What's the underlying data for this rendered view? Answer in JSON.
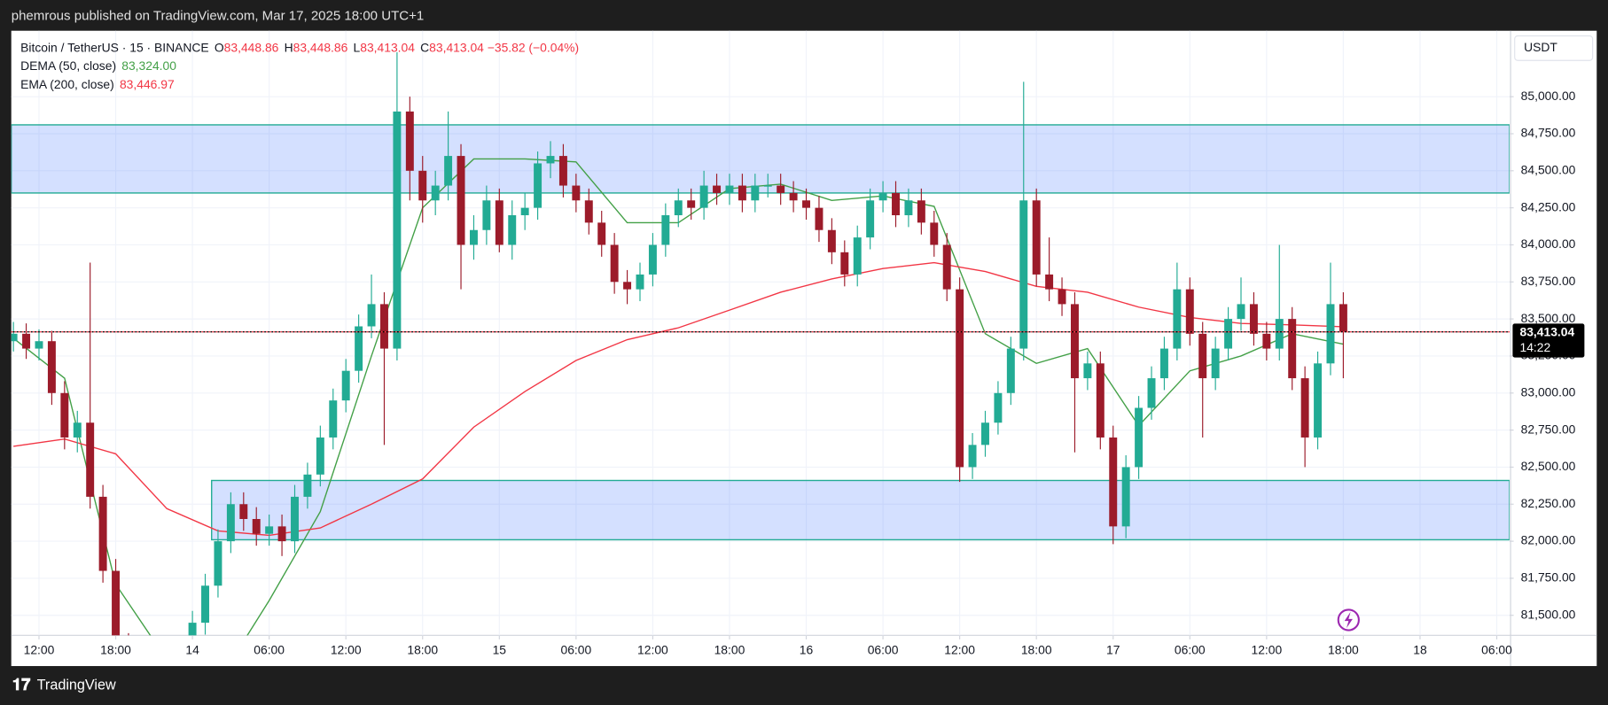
{
  "header": {
    "publisher": "phemrous published on TradingView.com, Mar 17, 2025 18:00 UTC+1"
  },
  "footer": {
    "brand": "TradingView"
  },
  "chart_data": {
    "type": "candlestick",
    "symbol": "Bitcoin / TetherUS · 15 · BINANCE",
    "ohlc": [
      {
        "key": "O",
        "value": "83,448.86"
      },
      {
        "key": "H",
        "value": "83,448.86"
      },
      {
        "key": "L",
        "value": "83,413.04"
      },
      {
        "key": "C",
        "value": "83,413.04"
      }
    ],
    "change": "−35.82 (−0.04%)",
    "y_unit": "USDT",
    "xlim": [
      "2025-03-13T09:50",
      "2025-03-18T07:00"
    ],
    "ylim": [
      81365,
      85445
    ],
    "grid": true,
    "xticks": [
      {
        "value": "2025-03-13T12:00",
        "label": "12:00"
      },
      {
        "value": "2025-03-13T18:00",
        "label": "18:00"
      },
      {
        "value": "2025-03-14T00:00",
        "label": "14"
      },
      {
        "value": "2025-03-14T06:00",
        "label": "06:00"
      },
      {
        "value": "2025-03-14T12:00",
        "label": "12:00"
      },
      {
        "value": "2025-03-14T18:00",
        "label": "18:00"
      },
      {
        "value": "2025-03-15T00:00",
        "label": "15"
      },
      {
        "value": "2025-03-15T06:00",
        "label": "06:00"
      },
      {
        "value": "2025-03-15T12:00",
        "label": "12:00"
      },
      {
        "value": "2025-03-15T18:00",
        "label": "18:00"
      },
      {
        "value": "2025-03-16T00:00",
        "label": "16"
      },
      {
        "value": "2025-03-16T06:00",
        "label": "06:00"
      },
      {
        "value": "2025-03-16T12:00",
        "label": "12:00"
      },
      {
        "value": "2025-03-16T18:00",
        "label": "18:00"
      },
      {
        "value": "2025-03-17T00:00",
        "label": "17"
      },
      {
        "value": "2025-03-17T06:00",
        "label": "06:00"
      },
      {
        "value": "2025-03-17T12:00",
        "label": "12:00"
      },
      {
        "value": "2025-03-17T18:00",
        "label": "18:00"
      },
      {
        "value": "2025-03-18T00:00",
        "label": "18"
      },
      {
        "value": "2025-03-18T06:00",
        "label": "06:00"
      }
    ],
    "yticks": [
      {
        "value": 81500,
        "label": "81,500.00"
      },
      {
        "value": 81750,
        "label": "81,750.00"
      },
      {
        "value": 82000,
        "label": "82,000.00"
      },
      {
        "value": 82250,
        "label": "82,250.00"
      },
      {
        "value": 82500,
        "label": "82,500.00"
      },
      {
        "value": 82750,
        "label": "82,750.00"
      },
      {
        "value": 83000,
        "label": "83,000.00"
      },
      {
        "value": 83250,
        "label": "83,250.00"
      },
      {
        "value": 83500,
        "label": "83,500.00"
      },
      {
        "value": 83750,
        "label": "83,750.00"
      },
      {
        "value": 84000,
        "label": "84,000.00"
      },
      {
        "value": 84250,
        "label": "84,250.00"
      },
      {
        "value": 84500,
        "label": "84,500.00"
      },
      {
        "value": 84750,
        "label": "84,750.00"
      },
      {
        "value": 85000,
        "label": "85,000.00"
      }
    ],
    "zones": [
      {
        "top": 84810,
        "bottom": 84350
      },
      {
        "from": "2025-03-14T01:30",
        "top": 82410,
        "bottom": 82010
      }
    ],
    "zone_fill": "rgba(41,98,255,0.2)",
    "zone_border": "#22ab94",
    "last_price": {
      "value": 83413.04,
      "label": "83,413.04",
      "countdown": "14:22",
      "color": "#f23645"
    },
    "candles": {
      "up_color": "#22ab94",
      "down_color": "#9c1b2a",
      "x": [
        "2025-03-13T10:00",
        "2025-03-13T11:00",
        "2025-03-13T12:00",
        "2025-03-13T13:00",
        "2025-03-13T14:00",
        "2025-03-13T15:00",
        "2025-03-13T16:00",
        "2025-03-13T17:00",
        "2025-03-13T18:00",
        "2025-03-13T19:00",
        "2025-03-13T20:00",
        "2025-03-13T21:00",
        "2025-03-13T22:00",
        "2025-03-13T23:00",
        "2025-03-14T00:00",
        "2025-03-14T01:00",
        "2025-03-14T02:00",
        "2025-03-14T03:00",
        "2025-03-14T04:00",
        "2025-03-14T05:00",
        "2025-03-14T06:00",
        "2025-03-14T07:00",
        "2025-03-14T08:00",
        "2025-03-14T09:00",
        "2025-03-14T10:00",
        "2025-03-14T11:00",
        "2025-03-14T12:00",
        "2025-03-14T13:00",
        "2025-03-14T14:00",
        "2025-03-14T15:00",
        "2025-03-14T16:00",
        "2025-03-14T17:00",
        "2025-03-14T18:00",
        "2025-03-14T19:00",
        "2025-03-14T20:00",
        "2025-03-14T21:00",
        "2025-03-14T22:00",
        "2025-03-14T23:00",
        "2025-03-15T00:00",
        "2025-03-15T01:00",
        "2025-03-15T02:00",
        "2025-03-15T03:00",
        "2025-03-15T04:00",
        "2025-03-15T05:00",
        "2025-03-15T06:00",
        "2025-03-15T07:00",
        "2025-03-15T08:00",
        "2025-03-15T09:00",
        "2025-03-15T10:00",
        "2025-03-15T11:00",
        "2025-03-15T12:00",
        "2025-03-15T13:00",
        "2025-03-15T14:00",
        "2025-03-15T15:00",
        "2025-03-15T16:00",
        "2025-03-15T17:00",
        "2025-03-15T18:00",
        "2025-03-15T19:00",
        "2025-03-15T20:00",
        "2025-03-15T21:00",
        "2025-03-15T22:00",
        "2025-03-15T23:00",
        "2025-03-16T00:00",
        "2025-03-16T01:00",
        "2025-03-16T02:00",
        "2025-03-16T03:00",
        "2025-03-16T04:00",
        "2025-03-16T05:00",
        "2025-03-16T06:00",
        "2025-03-16T07:00",
        "2025-03-16T08:00",
        "2025-03-16T09:00",
        "2025-03-16T10:00",
        "2025-03-16T11:00",
        "2025-03-16T12:00",
        "2025-03-16T13:00",
        "2025-03-16T14:00",
        "2025-03-16T15:00",
        "2025-03-16T16:00",
        "2025-03-16T17:00",
        "2025-03-16T18:00",
        "2025-03-16T19:00",
        "2025-03-16T20:00",
        "2025-03-16T21:00",
        "2025-03-16T22:00",
        "2025-03-16T23:00",
        "2025-03-17T00:00",
        "2025-03-17T01:00",
        "2025-03-17T02:00",
        "2025-03-17T03:00",
        "2025-03-17T04:00",
        "2025-03-17T05:00",
        "2025-03-17T06:00",
        "2025-03-17T07:00",
        "2025-03-17T08:00",
        "2025-03-17T09:00",
        "2025-03-17T10:00",
        "2025-03-17T11:00",
        "2025-03-17T12:00",
        "2025-03-17T13:00",
        "2025-03-17T14:00",
        "2025-03-17T15:00",
        "2025-03-17T16:00",
        "2025-03-17T17:00",
        "2025-03-17T18:00"
      ],
      "open": [
        83350,
        83400,
        83300,
        83350,
        83000,
        82700,
        82800,
        82300,
        81800,
        81300,
        81000,
        80900,
        81000,
        81100,
        81200,
        81450,
        81700,
        82000,
        82250,
        82150,
        82050,
        82100,
        82000,
        82300,
        82450,
        82700,
        82950,
        83150,
        83450,
        83600,
        83300,
        84900,
        84500,
        84300,
        84400,
        84600,
        84000,
        84100,
        84300,
        84000,
        84200,
        84250,
        84550,
        84600,
        84400,
        84300,
        84150,
        84000,
        83750,
        83700,
        83800,
        84000,
        84200,
        84300,
        84250,
        84400,
        84350,
        84400,
        84300,
        84400,
        84400,
        84350,
        84300,
        84250,
        84100,
        83950,
        83800,
        84050,
        84300,
        84350,
        84200,
        84300,
        84150,
        84000,
        83700,
        82500,
        82650,
        82800,
        83000,
        83300,
        84300,
        83800,
        83700,
        83600,
        83100,
        83200,
        82700,
        82100,
        82500,
        82900,
        83100,
        83300,
        83700,
        83400,
        83100,
        83300,
        83500,
        83600,
        83400,
        83300,
        83500,
        83100,
        82700,
        83200,
        83600
      ],
      "high": [
        83480,
        83470,
        83430,
        83420,
        83080,
        82880,
        83880,
        82380,
        81880,
        81380,
        81080,
        81080,
        81180,
        81280,
        81530,
        81780,
        82080,
        82330,
        82330,
        82230,
        82180,
        82180,
        82380,
        82530,
        82780,
        83030,
        83230,
        83530,
        83800,
        83680,
        85300,
        85000,
        84600,
        84500,
        84900,
        84680,
        84200,
        84400,
        84380,
        84300,
        84350,
        84630,
        84700,
        84680,
        84480,
        84380,
        84230,
        84080,
        83830,
        83880,
        84080,
        84280,
        84380,
        84380,
        84500,
        84480,
        84480,
        84480,
        84480,
        84480,
        84480,
        84430,
        84380,
        84330,
        84180,
        84030,
        84130,
        84380,
        84430,
        84430,
        84380,
        84380,
        84230,
        84080,
        83780,
        82730,
        82880,
        83080,
        83380,
        85100,
        84380,
        84050,
        83780,
        83680,
        83280,
        83280,
        82780,
        82580,
        82980,
        83180,
        83380,
        83880,
        83780,
        83480,
        83380,
        83580,
        83780,
        83680,
        83480,
        84000,
        83580,
        83180,
        83280,
        83880,
        83680
      ],
      "low": [
        83280,
        83230,
        83220,
        82920,
        82620,
        82600,
        82220,
        81720,
        81220,
        80920,
        80820,
        80820,
        80920,
        81020,
        81120,
        81370,
        81620,
        81920,
        82070,
        81970,
        81970,
        81900,
        81920,
        82220,
        82370,
        82620,
        82870,
        83070,
        83370,
        82650,
        83220,
        84300,
        84150,
        84200,
        84300,
        83700,
        83900,
        84000,
        83950,
        83900,
        84100,
        84170,
        84450,
        84320,
        84220,
        84070,
        83920,
        83670,
        83600,
        83620,
        83720,
        83920,
        84120,
        84170,
        84170,
        84270,
        84270,
        84220,
        84220,
        84320,
        84270,
        84220,
        84170,
        84020,
        83870,
        83720,
        83720,
        83970,
        84220,
        84120,
        84120,
        84070,
        83920,
        83620,
        82400,
        82420,
        82570,
        82720,
        82920,
        83220,
        83720,
        83620,
        83520,
        82600,
        83020,
        82620,
        81980,
        82020,
        82420,
        82820,
        83020,
        83220,
        83320,
        82700,
        83020,
        83220,
        83420,
        83320,
        83220,
        83220,
        83020,
        82500,
        82620,
        83120,
        83100
      ],
      "close": [
        83400,
        83300,
        83350,
        83000,
        82700,
        82800,
        82300,
        81800,
        81300,
        81000,
        80900,
        81000,
        81100,
        81200,
        81450,
        81700,
        82000,
        82250,
        82150,
        82050,
        82100,
        82000,
        82300,
        82450,
        82700,
        82950,
        83150,
        83450,
        83600,
        83300,
        84900,
        84500,
        84300,
        84400,
        84600,
        84000,
        84100,
        84300,
        84000,
        84200,
        84250,
        84550,
        84600,
        84400,
        84300,
        84150,
        84000,
        83750,
        83700,
        83800,
        84000,
        84200,
        84300,
        84250,
        84400,
        84350,
        84400,
        84300,
        84400,
        84400,
        84350,
        84300,
        84250,
        84100,
        83950,
        83800,
        84050,
        84300,
        84350,
        84200,
        84300,
        84150,
        84000,
        83700,
        82500,
        82650,
        82800,
        83000,
        83300,
        84300,
        83800,
        83700,
        83600,
        83100,
        83200,
        82700,
        82100,
        82500,
        82900,
        83100,
        83300,
        83700,
        83400,
        83100,
        83300,
        83500,
        83600,
        83400,
        83300,
        83500,
        83100,
        82700,
        83200,
        83600,
        83413
      ]
    },
    "indicators": [
      {
        "name": "DEMA (50, close)",
        "value_label": "83,324.00",
        "color": "#43a047",
        "x": [
          "2025-03-13T10:00",
          "2025-03-13T14:00",
          "2025-03-13T18:00",
          "2025-03-13T22:00",
          "2025-03-14T02:00",
          "2025-03-14T06:00",
          "2025-03-14T10:00",
          "2025-03-14T14:00",
          "2025-03-14T18:00",
          "2025-03-14T22:00",
          "2025-03-15T02:00",
          "2025-03-15T06:00",
          "2025-03-15T10:00",
          "2025-03-15T14:00",
          "2025-03-15T18:00",
          "2025-03-15T22:00",
          "2025-03-16T02:00",
          "2025-03-16T06:00",
          "2025-03-16T10:00",
          "2025-03-16T14:00",
          "2025-03-16T18:00",
          "2025-03-16T22:00",
          "2025-03-17T02:00",
          "2025-03-17T06:00",
          "2025-03-17T10:00",
          "2025-03-17T14:00",
          "2025-03-17T18:00"
        ],
        "values": [
          83370,
          83100,
          81710,
          81200,
          81050,
          81600,
          82200,
          83250,
          84250,
          84580,
          84580,
          84560,
          84150,
          84150,
          84380,
          84410,
          84300,
          84330,
          84260,
          83400,
          83200,
          83300,
          82780,
          83150,
          83250,
          83400,
          83330
        ]
      },
      {
        "name": "EMA (200, close)",
        "value_label": "83,446.97",
        "color": "#f23645",
        "x": [
          "2025-03-13T10:00",
          "2025-03-13T14:00",
          "2025-03-13T18:00",
          "2025-03-13T22:00",
          "2025-03-14T02:00",
          "2025-03-14T06:00",
          "2025-03-14T10:00",
          "2025-03-14T14:00",
          "2025-03-14T18:00",
          "2025-03-14T22:00",
          "2025-03-15T02:00",
          "2025-03-15T06:00",
          "2025-03-15T10:00",
          "2025-03-15T14:00",
          "2025-03-15T18:00",
          "2025-03-15T22:00",
          "2025-03-16T02:00",
          "2025-03-16T06:00",
          "2025-03-16T10:00",
          "2025-03-16T14:00",
          "2025-03-16T18:00",
          "2025-03-16T22:00",
          "2025-03-17T02:00",
          "2025-03-17T06:00",
          "2025-03-17T10:00",
          "2025-03-17T14:00",
          "2025-03-17T18:00"
        ],
        "values": [
          82640,
          82690,
          82590,
          82220,
          82070,
          82040,
          82090,
          82250,
          82420,
          82770,
          83010,
          83220,
          83360,
          83440,
          83560,
          83680,
          83770,
          83840,
          83880,
          83820,
          83720,
          83680,
          83580,
          83510,
          83470,
          83460,
          83447
        ]
      }
    ]
  }
}
